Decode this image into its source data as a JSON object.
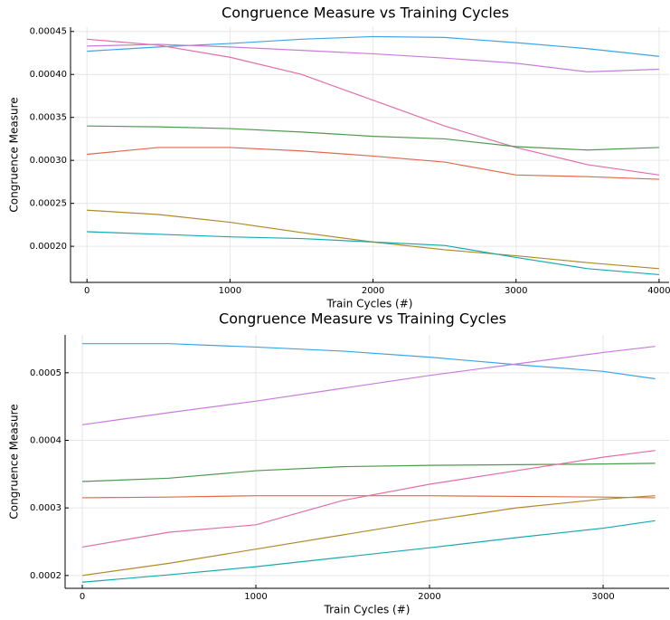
{
  "chart_data": [
    {
      "type": "line",
      "title": "Congruence Measure vs Training Cycles",
      "x_label": "Train Cycles (#)",
      "y_label": "Congruence Measure",
      "x": [
        0,
        500,
        1000,
        1500,
        2000,
        2500,
        3000,
        3500,
        4000
      ],
      "xlim": [
        -115,
        4070
      ],
      "xticks": [
        0,
        1000,
        2000,
        3000,
        4000
      ],
      "ylim": [
        0.000158,
        0.000455
      ],
      "yticks": [
        0.00045,
        {
          "value": 0.0004,
          "label": "0.00040"
        },
        0.00035,
        {
          "value": 0.0003,
          "label": "0.00030"
        },
        0.00025,
        {
          "value": 0.0002,
          "label": "0.00020"
        }
      ],
      "grid": true,
      "series": [
        {
          "color": "#3da4e6",
          "values": [
            0.000427,
            0.000432,
            0.000436,
            0.000441,
            0.000444,
            0.000443,
            0.000437,
            0.00043,
            0.000421
          ]
        },
        {
          "color": "#c77ddb",
          "values": [
            0.000433,
            0.000435,
            0.000432,
            0.000428,
            0.000424,
            0.000419,
            0.000413,
            0.000403,
            0.000406
          ]
        },
        {
          "color": "#e16ea8",
          "values": [
            0.000441,
            0.000434,
            0.00042,
            0.0004,
            0.00037,
            0.00034,
            0.000315,
            0.000295,
            0.000283
          ]
        },
        {
          "color": "#4e9a4e",
          "values": [
            0.00034,
            0.000339,
            0.000337,
            0.000333,
            0.000328,
            0.000325,
            0.000316,
            0.000312,
            0.000315
          ]
        },
        {
          "color": "#e06a4a",
          "values": [
            0.000307,
            0.000315,
            0.000315,
            0.000311,
            0.000305,
            0.000298,
            0.000283,
            0.000281,
            0.000278
          ]
        },
        {
          "color": "#b08a2a",
          "values": [
            0.000242,
            0.000237,
            0.000228,
            0.000216,
            0.000205,
            0.000196,
            0.000189,
            0.000181,
            0.000174
          ]
        },
        {
          "color": "#1aa9b0",
          "values": [
            0.000217,
            0.000214,
            0.000211,
            0.000209,
            0.000205,
            0.000201,
            0.000187,
            0.000174,
            0.000167
          ]
        }
      ]
    },
    {
      "type": "line",
      "title": "Congruence Measure vs Training Cycles",
      "x_label": "Train Cycles (#)",
      "y_label": "Congruence Measure",
      "x": [
        0,
        500,
        1000,
        1500,
        2000,
        2500,
        3000,
        3300
      ],
      "xlim": [
        -99,
        3380
      ],
      "xticks": [
        0,
        1000,
        2000,
        3000
      ],
      "ylim": [
        0.000181,
        0.000556
      ],
      "yticks": [
        0.0005,
        0.0004,
        0.0003,
        0.0002
      ],
      "grid": true,
      "series": [
        {
          "color": "#3da4e6",
          "values": [
            0.000543,
            0.000543,
            0.000538,
            0.000532,
            0.000523,
            0.000512,
            0.000502,
            0.000491
          ]
        },
        {
          "color": "#c77ddb",
          "values": [
            0.000423,
            0.000441,
            0.000458,
            0.000477,
            0.000496,
            0.000513,
            0.00053,
            0.000539
          ]
        },
        {
          "color": "#4e9a4e",
          "values": [
            0.000339,
            0.000344,
            0.000355,
            0.000361,
            0.000363,
            0.000364,
            0.000365,
            0.000366
          ]
        },
        {
          "color": "#e06a4a",
          "values": [
            0.000315,
            0.000316,
            0.000318,
            0.000318,
            0.000318,
            0.000317,
            0.000316,
            0.000315
          ]
        },
        {
          "color": "#e16ea8",
          "values": [
            0.000242,
            0.000264,
            0.000275,
            0.000311,
            0.000335,
            0.000355,
            0.000375,
            0.000385
          ]
        },
        {
          "color": "#b08a2a",
          "values": [
            0.0002,
            0.000218,
            0.000239,
            0.00026,
            0.000281,
            0.0003,
            0.000313,
            0.000318
          ]
        },
        {
          "color": "#1aa9b0",
          "values": [
            0.00019,
            0.000201,
            0.000213,
            0.000227,
            0.000241,
            0.000256,
            0.00027,
            0.000281
          ]
        }
      ]
    }
  ]
}
